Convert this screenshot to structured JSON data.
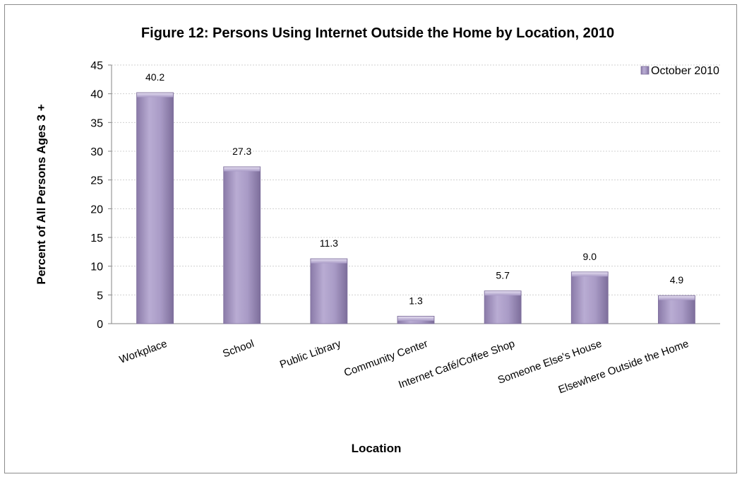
{
  "chart_data": {
    "type": "bar",
    "title": "Figure 12: Persons Using Internet Outside the Home by Location, 2010",
    "xlabel": "Location",
    "ylabel": "Percent of All Persons Ages 3 +",
    "categories": [
      "Workplace",
      "School",
      "Public Library",
      "Community Center",
      "Internet Café/Coffee Shop",
      "Someone Else's House",
      "Elsewhere Outside the Home"
    ],
    "series": [
      {
        "name": "October 2010",
        "values": [
          40.2,
          27.3,
          11.3,
          1.3,
          5.7,
          9.0,
          4.9
        ],
        "labels": [
          "40.2",
          "27.3",
          "11.3",
          "1.3",
          "5.7",
          "9.0",
          "4.9"
        ],
        "color": "#a99bc6"
      }
    ],
    "ylim": [
      0,
      45
    ],
    "yticks": [
      0,
      5,
      10,
      15,
      20,
      25,
      30,
      35,
      40,
      45
    ],
    "grid": true,
    "legend_position": "top-right"
  }
}
